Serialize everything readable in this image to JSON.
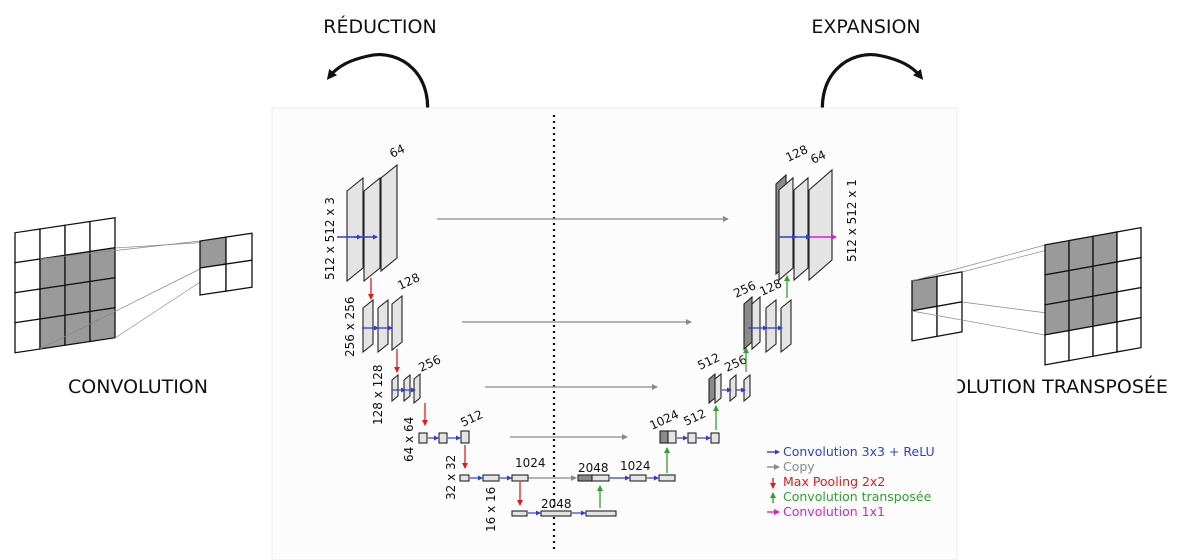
{
  "titles": {
    "reduction": "RÉDUCTION",
    "expansion": "EXPANSION",
    "convolution": "CONVOLUTION",
    "transposed": "CONVOLUTION TRANSPOSÉE"
  },
  "unet": {
    "resolutions": [
      "512 x 512 x 3",
      "256 x 256",
      "128 x 128",
      "64 x 64",
      "32 x 32",
      "16 x 16"
    ],
    "encoder_channels": [
      "64",
      "128",
      "256",
      "512",
      "1024"
    ],
    "bottleneck_channels": "2048",
    "decoder_channels": [
      "2048",
      "1024",
      "1024",
      "512",
      "512",
      "256",
      "256",
      "128",
      "128",
      "64"
    ],
    "output_size": "512 x 512 x 1"
  },
  "legend": [
    {
      "label": "Convolution 3x3 + ReLU",
      "color": "#2b3fd6"
    },
    {
      "label": "Copy",
      "color": "#8a8a8a"
    },
    {
      "label": "Max Pooling 2x2",
      "color": "#e01b1b"
    },
    {
      "label": "Convolution transposée",
      "color": "#2aa52a"
    },
    {
      "label": "Convolution 1x1",
      "color": "#e01bd8"
    }
  ],
  "conv_grid": {
    "input_size": 4,
    "kernel_size": 3,
    "output_size": 2
  },
  "tconv_grid": {
    "input_size": 2,
    "output_size": 4,
    "kernel_size": 3
  }
}
